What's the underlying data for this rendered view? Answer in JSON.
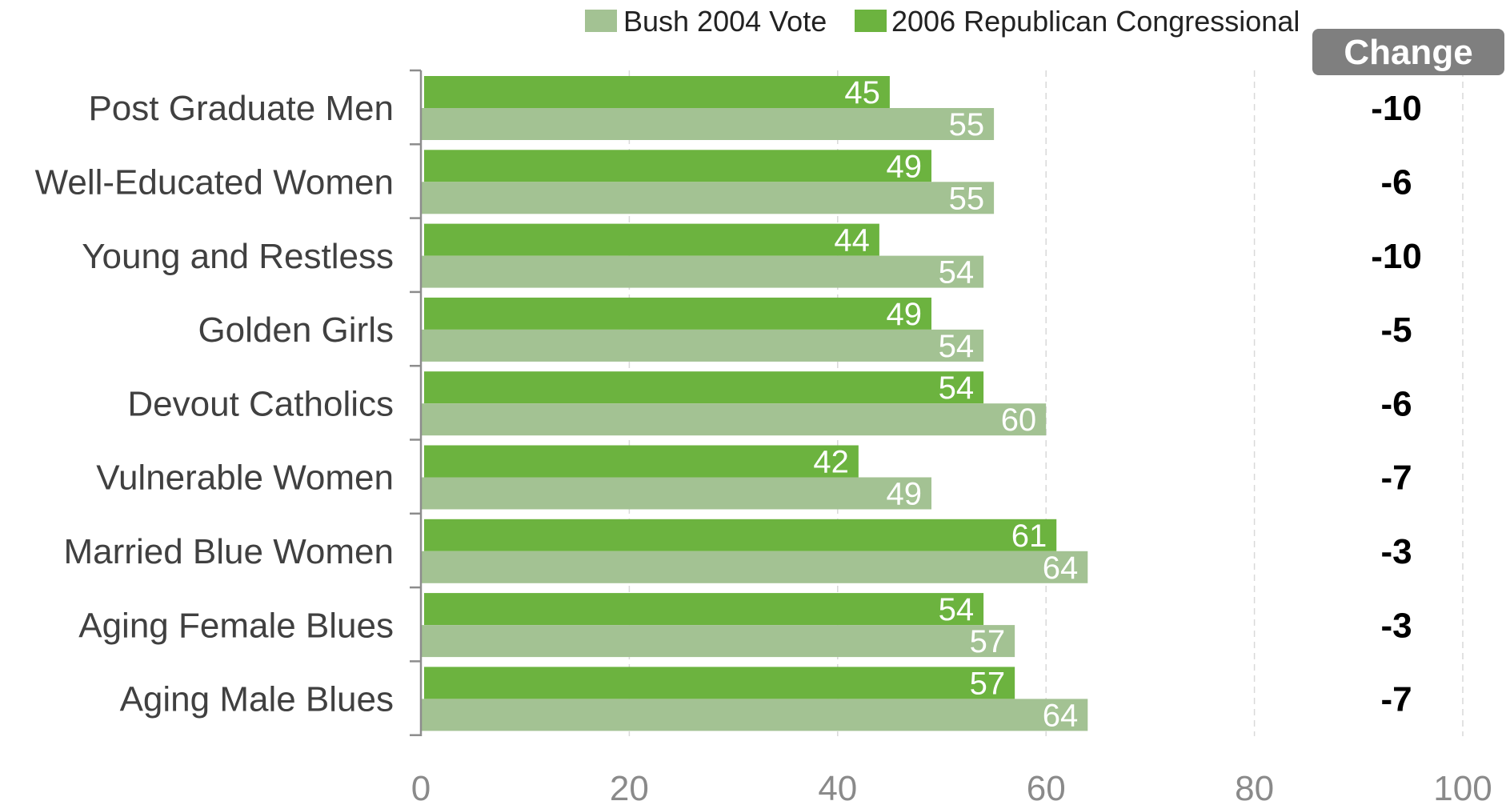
{
  "chart_data": {
    "type": "bar",
    "orientation": "horizontal",
    "categories": [
      "Post Graduate Men",
      "Well-Educated Women",
      "Young and Restless",
      "Golden Girls",
      "Devout Catholics",
      "Vulnerable Women",
      "Married Blue Women",
      "Aging Female Blues",
      "Aging Male Blues"
    ],
    "series": [
      {
        "name": "Bush 2004 Vote",
        "color": "#a3c293",
        "values": [
          55,
          55,
          54,
          54,
          60,
          49,
          64,
          57,
          64
        ]
      },
      {
        "name": "2006 Republican Congressional",
        "color": "#6cb33f",
        "values": [
          45,
          49,
          44,
          49,
          54,
          42,
          61,
          54,
          57
        ]
      }
    ],
    "change": {
      "header": "Change",
      "values": [
        "-10",
        "-6",
        "-10",
        "-5",
        "-6",
        "-7",
        "-3",
        "-3",
        "-7"
      ]
    },
    "xlim": [
      0,
      100
    ],
    "xticks": [
      "0",
      "20",
      "40",
      "60",
      "80",
      "100"
    ],
    "gridlines": "vertical dashed",
    "legend_position": "top",
    "colors": {
      "bush": "#a3c293",
      "republican": "#6cb33f",
      "change_header_bg": "#7f7f7f",
      "axis": "#8c8c8c",
      "grid": "#d9d9d9"
    }
  }
}
